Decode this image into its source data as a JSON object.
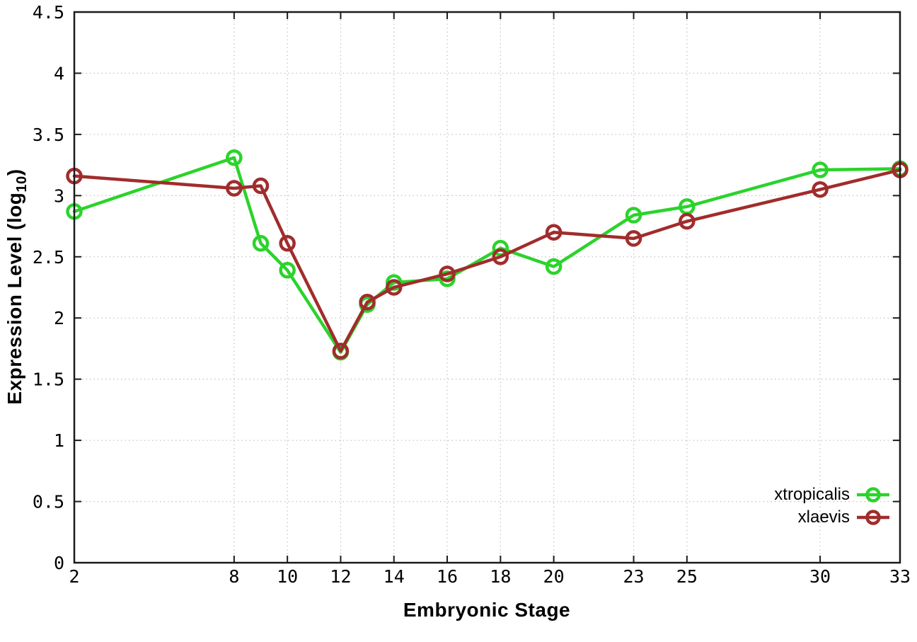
{
  "chart_data": {
    "type": "line",
    "xlabel": "Embryonic Stage",
    "ylabel": "Expression Level (log10)",
    "ylabel_parts": {
      "main": "Expression Level (log",
      "sub": "10",
      "end": ")"
    },
    "xlim": [
      2,
      33
    ],
    "ylim": [
      0,
      4.5
    ],
    "x_ticks": [
      2,
      8,
      10,
      12,
      14,
      16,
      18,
      20,
      23,
      25,
      30,
      33
    ],
    "y_ticks": [
      0,
      0.5,
      1,
      1.5,
      2,
      2.5,
      3,
      3.5,
      4,
      4.5
    ],
    "grid": true,
    "grid_style": "dotted",
    "legend_position": "inside-bottom-right",
    "x": [
      2,
      8,
      9,
      10,
      12,
      13,
      14,
      16,
      18,
      20,
      23,
      25,
      30,
      33
    ],
    "series": [
      {
        "name": "xtropicalis",
        "color": "#2bd32b",
        "marker": "open-circle",
        "values": [
          2.87,
          3.31,
          2.61,
          2.39,
          1.72,
          2.11,
          2.29,
          2.32,
          2.57,
          2.42,
          2.84,
          2.91,
          3.21,
          3.22
        ]
      },
      {
        "name": "xlaevis",
        "color": "#a12c2c",
        "marker": "open-circle",
        "values": [
          3.16,
          3.06,
          3.08,
          2.61,
          1.73,
          2.13,
          2.25,
          2.36,
          2.5,
          2.7,
          2.65,
          2.79,
          3.05,
          3.21
        ]
      }
    ],
    "colors": {
      "border": "#1a1a1a",
      "grid": "#c4c4c4",
      "background": "#ffffff",
      "text": "#000000"
    }
  }
}
